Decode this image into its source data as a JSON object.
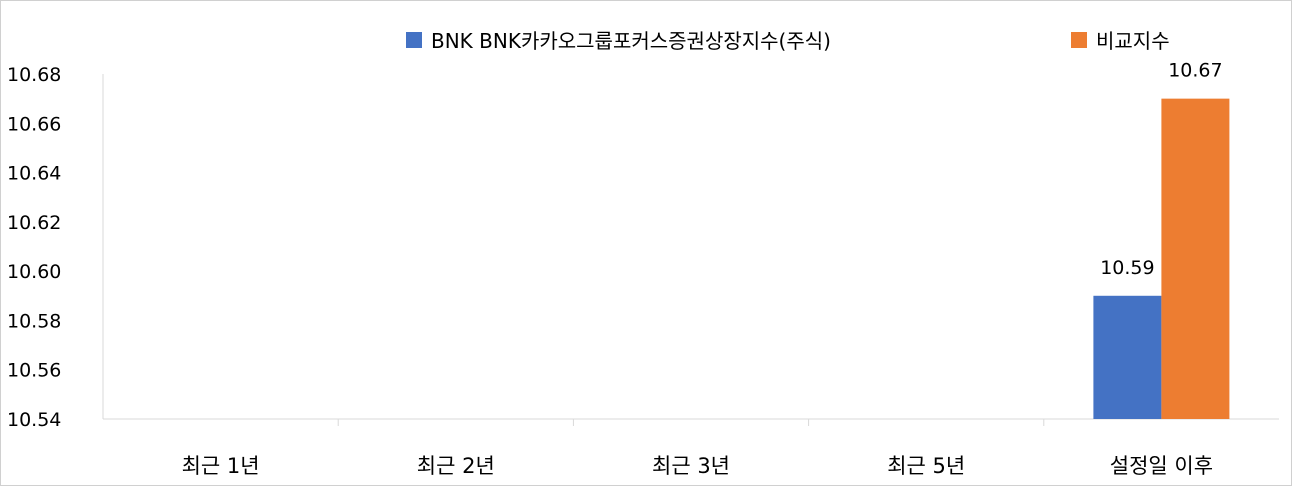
{
  "chart_data": {
    "type": "bar",
    "categories": [
      "최근 1년",
      "최근 2년",
      "최근 3년",
      "최근 5년",
      "설정일 이후"
    ],
    "series": [
      {
        "name": "BNK BNK카카오그룹포커스증권상장지수(주식)",
        "color": "#4472c4",
        "values": [
          null,
          null,
          null,
          null,
          10.59
        ],
        "labels": [
          "",
          "",
          "",
          "",
          "10.59"
        ]
      },
      {
        "name": "비교지수",
        "color": "#ed7d31",
        "values": [
          null,
          null,
          null,
          null,
          10.67
        ],
        "labels": [
          "",
          "",
          "",
          "",
          "10.67"
        ]
      }
    ],
    "ylim": [
      10.54,
      10.68
    ],
    "yticks": [
      "10.54",
      "10.56",
      "10.58",
      "10.60",
      "10.62",
      "10.64",
      "10.66",
      "10.68"
    ],
    "grid": false,
    "legend_position": "top-right",
    "title": "",
    "xlabel": "",
    "ylabel": ""
  }
}
